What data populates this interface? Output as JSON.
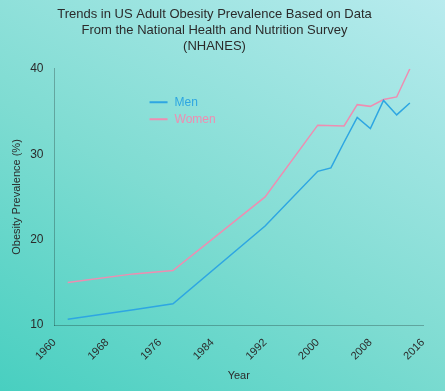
{
  "chart_data": {
    "type": "line",
    "title": [
      "Trends in US Adult Obesity Prevalence Based on Data",
      "From the National Health and Nutrition Survey",
      "(NHANES)"
    ],
    "x_label": "Year",
    "y_label": "Obesity Prevalence (%)",
    "xlim": [
      1960,
      2016
    ],
    "xticks": [
      1960,
      1968,
      1976,
      1984,
      1992,
      2000,
      2008,
      2016
    ],
    "ylim": [
      10,
      40
    ],
    "yticks": [
      10,
      20,
      30,
      40
    ],
    "grid": false,
    "legend": "upper left",
    "series": [
      {
        "name": "Men",
        "color": "#2ea6e2",
        "x": [
          1962,
          1972,
          1978,
          1992,
          2000,
          2002,
          2004,
          2006,
          2008,
          2010,
          2012,
          2014
        ],
        "values": [
          10.7,
          11.8,
          12.5,
          21.6,
          28.0,
          28.4,
          31.4,
          34.3,
          33.0,
          36.3,
          34.6,
          36.0
        ]
      },
      {
        "name": "Women",
        "color": "#ef8db1",
        "x": [
          1962,
          1972,
          1978,
          1992,
          2000,
          2004,
          2006,
          2008,
          2010,
          2012,
          2014
        ],
        "values": [
          15.0,
          16.0,
          16.4,
          25.0,
          33.4,
          33.3,
          35.8,
          35.6,
          36.4,
          36.7,
          40.0
        ]
      }
    ]
  }
}
